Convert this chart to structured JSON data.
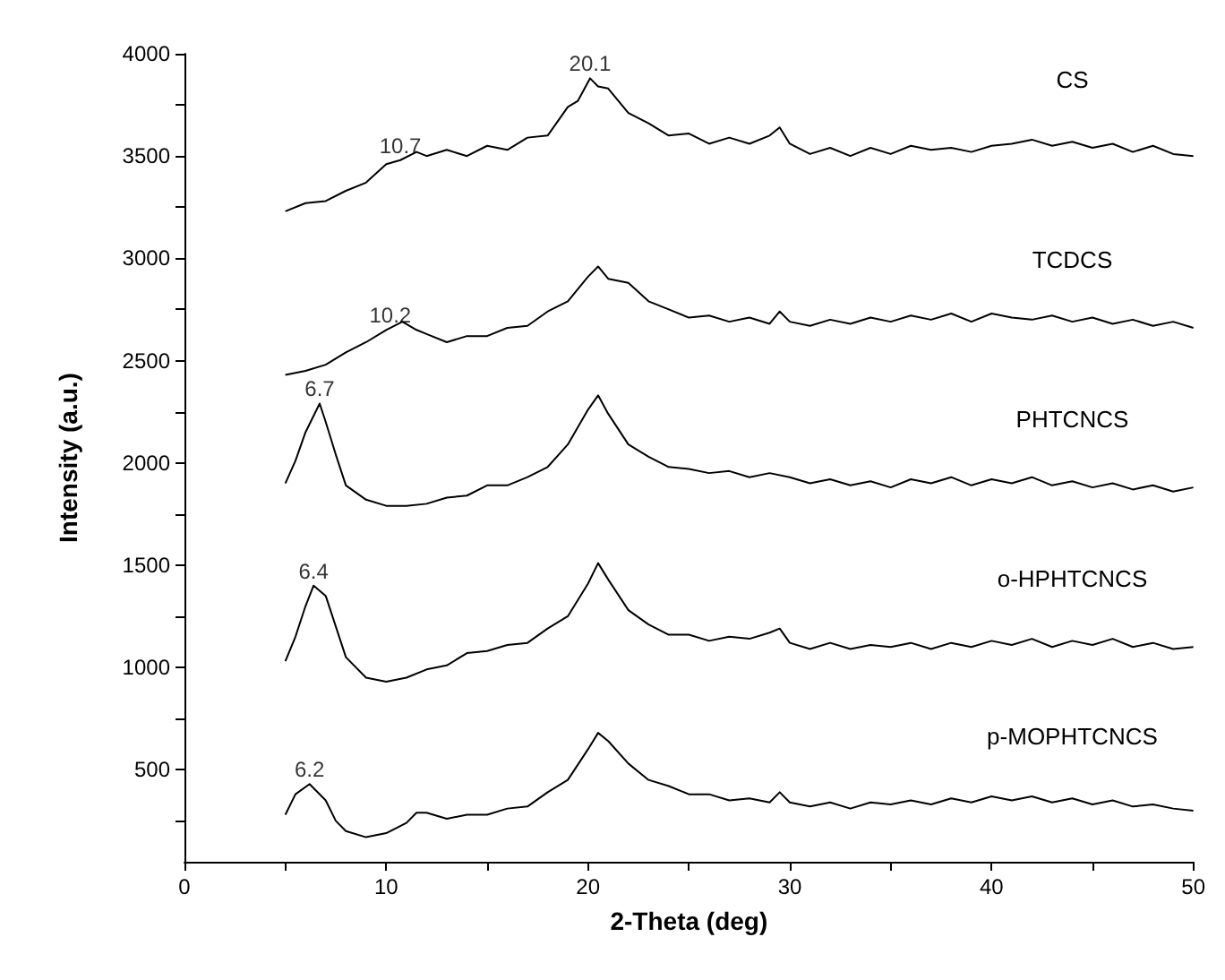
{
  "chart_data": {
    "type": "line",
    "xlabel": "2-Theta (deg)",
    "ylabel": "Intensity (a.u.)",
    "xlim": [
      0,
      50
    ],
    "xticks": [
      0,
      {
        "value": 5,
        "label": null
      },
      10,
      {
        "value": 15,
        "label": null
      },
      20,
      {
        "value": 25,
        "label": null
      },
      30,
      {
        "value": 35,
        "label": null
      },
      40,
      {
        "value": 45,
        "label": null
      },
      50
    ],
    "ylim": [
      50,
      4000
    ],
    "yticks": [
      {
        "value": 250,
        "label": null
      },
      500,
      {
        "value": 750,
        "label": null
      },
      1000,
      {
        "value": 1250,
        "label": null
      },
      1500,
      {
        "value": 1750,
        "label": null
      },
      2000,
      {
        "value": 2250,
        "label": null
      },
      2500,
      {
        "value": 2750,
        "label": null
      },
      3000,
      {
        "value": 3250,
        "label": null
      },
      3500,
      {
        "value": 3750,
        "label": null
      },
      4000
    ],
    "grid": false,
    "legend": false,
    "marker": "none",
    "line_style": "solid",
    "series": [
      {
        "name": "CS",
        "color": "#000000",
        "x": [
          5,
          6,
          7,
          8,
          9,
          10,
          10.7,
          11.5,
          12,
          13,
          14,
          15,
          16,
          17,
          18,
          19,
          19.5,
          20.1,
          20.5,
          21,
          22,
          23,
          24,
          25,
          26,
          27,
          28,
          29,
          29.5,
          30,
          31,
          32,
          33,
          34,
          35,
          36,
          37,
          38,
          39,
          40,
          41,
          42,
          43,
          44,
          45,
          46,
          47,
          48,
          49,
          50
        ],
        "values": [
          3230,
          3270,
          3280,
          3330,
          3370,
          3460,
          3480,
          3520,
          3500,
          3530,
          3500,
          3550,
          3530,
          3590,
          3600,
          3740,
          3770,
          3880,
          3840,
          3830,
          3710,
          3660,
          3600,
          3610,
          3560,
          3590,
          3560,
          3600,
          3640,
          3560,
          3510,
          3540,
          3500,
          3540,
          3510,
          3550,
          3530,
          3540,
          3520,
          3550,
          3560,
          3580,
          3550,
          3570,
          3540,
          3560,
          3520,
          3550,
          3510,
          3500
        ]
      },
      {
        "name": "TCDCS",
        "color": "#000000",
        "x": [
          5,
          6,
          7,
          8,
          9,
          10,
          10.8,
          11.5,
          12,
          13,
          14,
          15,
          16,
          17,
          18,
          19,
          20,
          20.5,
          21,
          22,
          23,
          24,
          25,
          26,
          27,
          28,
          29,
          29.5,
          30,
          31,
          32,
          33,
          34,
          35,
          36,
          37,
          38,
          39,
          40,
          41,
          42,
          43,
          44,
          45,
          46,
          47,
          48,
          49,
          50
        ],
        "values": [
          2430,
          2450,
          2480,
          2540,
          2590,
          2650,
          2690,
          2650,
          2630,
          2590,
          2620,
          2620,
          2660,
          2670,
          2740,
          2790,
          2910,
          2960,
          2900,
          2880,
          2790,
          2750,
          2710,
          2720,
          2690,
          2710,
          2680,
          2740,
          2690,
          2670,
          2700,
          2680,
          2710,
          2690,
          2720,
          2700,
          2730,
          2690,
          2730,
          2710,
          2700,
          2720,
          2690,
          2710,
          2680,
          2700,
          2670,
          2690,
          2660
        ]
      },
      {
        "name": "PHTCNCS",
        "color": "#000000",
        "x": [
          5,
          5.5,
          6,
          6.7,
          7,
          7.5,
          8,
          9,
          10,
          11,
          12,
          13,
          14,
          15,
          16,
          17,
          18,
          19,
          20,
          20.5,
          21,
          22,
          23,
          24,
          25,
          26,
          27,
          28,
          29,
          30,
          31,
          32,
          33,
          34,
          35,
          36,
          37,
          38,
          39,
          40,
          41,
          42,
          43,
          44,
          45,
          46,
          47,
          48,
          49,
          50
        ],
        "values": [
          1900,
          2010,
          2150,
          2290,
          2200,
          2040,
          1890,
          1820,
          1790,
          1790,
          1800,
          1830,
          1840,
          1890,
          1890,
          1930,
          1980,
          2090,
          2260,
          2330,
          2240,
          2090,
          2030,
          1980,
          1970,
          1950,
          1960,
          1930,
          1950,
          1930,
          1900,
          1920,
          1890,
          1910,
          1880,
          1920,
          1900,
          1930,
          1890,
          1920,
          1900,
          1930,
          1890,
          1910,
          1880,
          1900,
          1870,
          1890,
          1860,
          1880
        ]
      },
      {
        "name": "o-HPHTCNCS",
        "color": "#000000",
        "x": [
          5,
          5.5,
          6,
          6.4,
          7,
          7.5,
          8,
          9,
          10,
          11,
          12,
          13,
          14,
          15,
          16,
          17,
          18,
          19,
          20,
          20.5,
          21,
          22,
          23,
          24,
          25,
          26,
          27,
          28,
          29,
          29.5,
          30,
          31,
          32,
          33,
          34,
          35,
          36,
          37,
          38,
          39,
          40,
          41,
          42,
          43,
          44,
          45,
          46,
          47,
          48,
          49,
          50
        ],
        "values": [
          1030,
          1150,
          1300,
          1400,
          1350,
          1200,
          1050,
          950,
          930,
          950,
          990,
          1010,
          1070,
          1080,
          1110,
          1120,
          1190,
          1250,
          1410,
          1510,
          1430,
          1280,
          1210,
          1160,
          1160,
          1130,
          1150,
          1140,
          1170,
          1190,
          1120,
          1090,
          1120,
          1090,
          1110,
          1100,
          1120,
          1090,
          1120,
          1100,
          1130,
          1110,
          1140,
          1100,
          1130,
          1110,
          1140,
          1100,
          1120,
          1090,
          1100
        ]
      },
      {
        "name": "p-MOPHTCNCS",
        "color": "#000000",
        "x": [
          5,
          5.5,
          6.2,
          7,
          7.5,
          8,
          9,
          10,
          11,
          11.5,
          12,
          13,
          14,
          15,
          16,
          17,
          18,
          19,
          20,
          20.5,
          21,
          22,
          23,
          24,
          25,
          26,
          27,
          28,
          29,
          29.5,
          30,
          31,
          32,
          33,
          34,
          35,
          36,
          37,
          38,
          39,
          40,
          41,
          42,
          43,
          44,
          45,
          46,
          47,
          48,
          49,
          50
        ],
        "values": [
          280,
          380,
          430,
          350,
          250,
          200,
          170,
          190,
          240,
          290,
          290,
          260,
          280,
          280,
          310,
          320,
          390,
          450,
          600,
          680,
          640,
          530,
          450,
          420,
          380,
          380,
          350,
          360,
          340,
          390,
          340,
          320,
          340,
          310,
          340,
          330,
          350,
          330,
          360,
          340,
          370,
          350,
          370,
          340,
          360,
          330,
          350,
          320,
          330,
          310,
          300
        ]
      }
    ],
    "annotations": [
      {
        "text": "10.7",
        "x": 10.7,
        "y": 3480
      },
      {
        "text": "20.1",
        "x": 20.1,
        "y": 3880
      },
      {
        "text": "10.2",
        "x": 10.2,
        "y": 2650
      },
      {
        "text": "6.7",
        "x": 6.7,
        "y": 2290
      },
      {
        "text": "6.4",
        "x": 6.4,
        "y": 1400
      },
      {
        "text": "6.2",
        "x": 6.2,
        "y": 430
      }
    ]
  }
}
